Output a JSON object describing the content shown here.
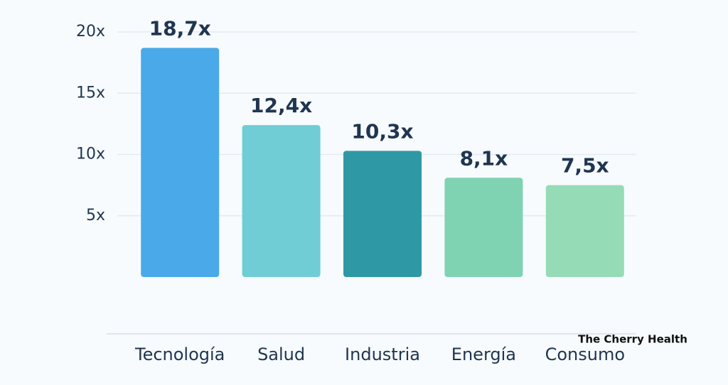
{
  "chart_data": {
    "type": "bar",
    "categories": [
      "Tecnología",
      "Salud",
      "Industria",
      "Energía",
      "Consumo"
    ],
    "values": [
      18.7,
      12.4,
      10.3,
      8.1,
      7.5
    ],
    "value_labels": [
      "18,7x",
      "12,4x",
      "10,3x",
      "8,1x",
      "7,5x"
    ],
    "colors": [
      "#4aa9e9",
      "#70cdd6",
      "#2f98a5",
      "#7fd3b2",
      "#95dcb6"
    ],
    "ylim": [
      0,
      20
    ],
    "yticks": [
      {
        "value": 5,
        "label": "5x"
      },
      {
        "value": 10,
        "label": "10x"
      },
      {
        "value": 15,
        "label": "15x"
      },
      {
        "value": 20,
        "label": "20x"
      }
    ],
    "grid": true
  },
  "watermark": "The Cherry Health"
}
